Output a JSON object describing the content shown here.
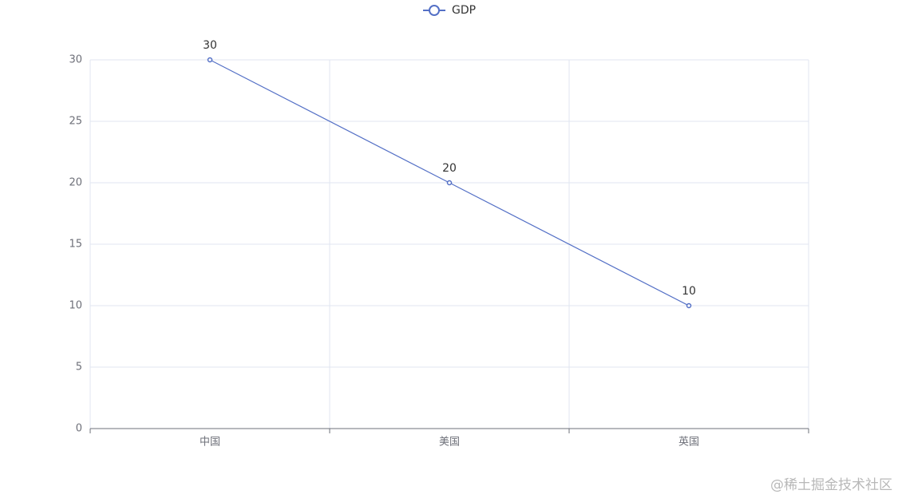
{
  "chart_data": {
    "type": "line",
    "categories": [
      "中国",
      "美国",
      "英国"
    ],
    "series": [
      {
        "name": "GDP",
        "color": "#5470c6",
        "values": [
          30,
          20,
          10
        ]
      }
    ],
    "ylim": [
      0,
      30
    ],
    "yticks": [
      0,
      5,
      10,
      15,
      20,
      25,
      30
    ],
    "grid": true,
    "legend": "top"
  },
  "watermark": "@稀土掘金技术社区"
}
